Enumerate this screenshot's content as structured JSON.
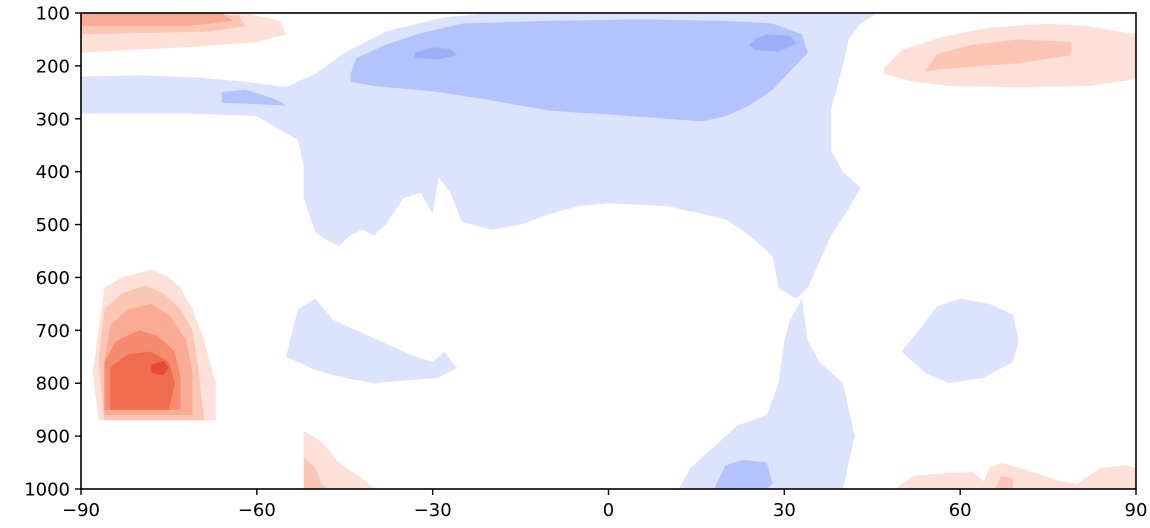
{
  "chart_data": {
    "type": "contour",
    "title": "",
    "xlabel": "",
    "ylabel": "",
    "x_range": [
      -90,
      90
    ],
    "y_range": [
      1000,
      100
    ],
    "y_inverted": true,
    "x_ticks": [
      -90,
      -60,
      -30,
      0,
      30,
      60,
      90
    ],
    "x_tick_labels": [
      "−90",
      "−60",
      "−30",
      "0",
      "30",
      "60",
      "90"
    ],
    "y_ticks": [
      100,
      200,
      300,
      400,
      500,
      600,
      700,
      800,
      900,
      1000
    ],
    "y_tick_labels": [
      "100",
      "200",
      "300",
      "400",
      "500",
      "600",
      "700",
      "800",
      "900",
      "1000"
    ],
    "grid": false,
    "colormap": "coolwarm",
    "level_colors": {
      "neg2": "#9aaff8",
      "neg1": "#b3c3fb",
      "neg0": "#dce3fc",
      "pos0": "#fde0d8",
      "pos1": "#fcc6b6",
      "pos2": "#f9ab95",
      "pos3": "#f58c70",
      "pos4": "#ef6c4e",
      "pos5": "#e6493a"
    },
    "regions": [
      {
        "name": "nh-polar-top-warm",
        "level": "pos0",
        "points": [
          [
            -90,
            100
          ],
          [
            -72,
            100
          ],
          [
            -62,
            100
          ],
          [
            -56,
            115
          ],
          [
            -55,
            140
          ],
          [
            -60,
            155
          ],
          [
            -72,
            165
          ],
          [
            -82,
            170
          ],
          [
            -90,
            175
          ]
        ]
      },
      {
        "name": "nh-polar-top-warm",
        "level": "pos1",
        "points": [
          [
            -90,
            100
          ],
          [
            -70,
            100
          ],
          [
            -63,
            105
          ],
          [
            -62,
            125
          ],
          [
            -68,
            135
          ],
          [
            -80,
            138
          ],
          [
            -90,
            140
          ]
        ]
      },
      {
        "name": "nh-polar-top-warm",
        "level": "pos2",
        "points": [
          [
            -90,
            100
          ],
          [
            -66,
            100
          ],
          [
            -64,
            115
          ],
          [
            -72,
            125
          ],
          [
            -90,
            125
          ]
        ]
      },
      {
        "name": "upper-cool-band",
        "level": "neg0",
        "points": [
          [
            -90,
            220
          ],
          [
            -80,
            218
          ],
          [
            -70,
            222
          ],
          [
            -62,
            230
          ],
          [
            -55,
            240
          ],
          [
            -50,
            215
          ],
          [
            -45,
            175
          ],
          [
            -38,
            135
          ],
          [
            -28,
            108
          ],
          [
            -20,
            100
          ],
          [
            46,
            100
          ],
          [
            43,
            120
          ],
          [
            41,
            150
          ],
          [
            40,
            200
          ],
          [
            38,
            280
          ],
          [
            38,
            360
          ],
          [
            40,
            400
          ],
          [
            43,
            430
          ],
          [
            41,
            470
          ],
          [
            38,
            520
          ],
          [
            36,
            570
          ],
          [
            34,
            620
          ],
          [
            32,
            640
          ],
          [
            29,
            620
          ],
          [
            28,
            560
          ],
          [
            24,
            520
          ],
          [
            20,
            490
          ],
          [
            10,
            465
          ],
          [
            0,
            460
          ],
          [
            -5,
            465
          ],
          [
            -10,
            480
          ],
          [
            -15,
            500
          ],
          [
            -20,
            510
          ],
          [
            -25,
            495
          ],
          [
            -27,
            440
          ],
          [
            -29,
            410
          ],
          [
            -30,
            480
          ],
          [
            -32,
            440
          ],
          [
            -35,
            450
          ],
          [
            -38,
            500
          ],
          [
            -40,
            520
          ],
          [
            -42,
            510
          ],
          [
            -44,
            520
          ],
          [
            -46,
            540
          ],
          [
            -48,
            530
          ],
          [
            -50,
            515
          ],
          [
            -52,
            450
          ],
          [
            -52,
            390
          ],
          [
            -53,
            340
          ],
          [
            -60,
            295
          ],
          [
            -72,
            290
          ],
          [
            -90,
            290
          ]
        ]
      },
      {
        "name": "upper-cool-core",
        "level": "neg1",
        "points": [
          [
            -44,
            215
          ],
          [
            -43,
            185
          ],
          [
            -38,
            160
          ],
          [
            -32,
            138
          ],
          [
            -25,
            120
          ],
          [
            -10,
            115
          ],
          [
            5,
            112
          ],
          [
            20,
            115
          ],
          [
            28,
            120
          ],
          [
            33,
            140
          ],
          [
            34,
            175
          ],
          [
            31,
            210
          ],
          [
            28,
            245
          ],
          [
            24,
            275
          ],
          [
            20,
            295
          ],
          [
            16,
            305
          ],
          [
            10,
            300
          ],
          [
            0,
            292
          ],
          [
            -10,
            285
          ],
          [
            -20,
            265
          ],
          [
            -30,
            248
          ],
          [
            -40,
            238
          ],
          [
            -44,
            230
          ]
        ]
      },
      {
        "name": "upper-cool-strong-1",
        "level": "neg2",
        "points": [
          [
            -33,
            175
          ],
          [
            -30,
            165
          ],
          [
            -27,
            168
          ],
          [
            -26,
            180
          ],
          [
            -29,
            188
          ],
          [
            -33,
            185
          ]
        ]
      },
      {
        "name": "upper-cool-strong-2",
        "level": "neg2",
        "points": [
          [
            25,
            150
          ],
          [
            27,
            140
          ],
          [
            31,
            143
          ],
          [
            32,
            158
          ],
          [
            29,
            173
          ],
          [
            25,
            170
          ],
          [
            24,
            160
          ]
        ]
      },
      {
        "name": "cool-tongue",
        "level": "neg1",
        "points": [
          [
            -66,
            250
          ],
          [
            -62,
            245
          ],
          [
            -57,
            262
          ],
          [
            -55,
            275
          ],
          [
            -60,
            272
          ],
          [
            -66,
            270
          ]
        ]
      },
      {
        "name": "mid-cool-lobe",
        "level": "neg0",
        "points": [
          [
            -55,
            750
          ],
          [
            -53,
            660
          ],
          [
            -50,
            640
          ],
          [
            -47,
            680
          ],
          [
            -42,
            705
          ],
          [
            -38,
            725
          ],
          [
            -34,
            745
          ],
          [
            -30,
            760
          ],
          [
            -28,
            740
          ],
          [
            -26,
            770
          ],
          [
            -25,
            765
          ],
          [
            -29,
            790
          ],
          [
            -35,
            795
          ],
          [
            -40,
            800
          ],
          [
            -45,
            790
          ],
          [
            -50,
            775
          ]
        ]
      },
      {
        "name": "tropical-lower-cool",
        "level": "neg0",
        "points": [
          [
            12,
            1000
          ],
          [
            14,
            960
          ],
          [
            18,
            920
          ],
          [
            22,
            880
          ],
          [
            27,
            860
          ],
          [
            29,
            800
          ],
          [
            30,
            720
          ],
          [
            31,
            680
          ],
          [
            33,
            640
          ],
          [
            34,
            720
          ],
          [
            36,
            760
          ],
          [
            38,
            780
          ],
          [
            40,
            800
          ],
          [
            41,
            850
          ],
          [
            42,
            900
          ],
          [
            41,
            950
          ],
          [
            40,
            1000
          ]
        ]
      },
      {
        "name": "tropical-lower-cool-core",
        "level": "neg1",
        "points": [
          [
            18,
            1000
          ],
          [
            20,
            955
          ],
          [
            23,
            945
          ],
          [
            27,
            950
          ],
          [
            28,
            990
          ],
          [
            27,
            1000
          ]
        ]
      },
      {
        "name": "mid-cool-lobe-2",
        "level": "neg0",
        "points": [
          [
            50,
            740
          ],
          [
            53,
            700
          ],
          [
            56,
            655
          ],
          [
            60,
            640
          ],
          [
            65,
            650
          ],
          [
            69,
            670
          ],
          [
            70,
            720
          ],
          [
            69,
            760
          ],
          [
            64,
            790
          ],
          [
            58,
            800
          ],
          [
            54,
            780
          ],
          [
            52,
            760
          ]
        ]
      },
      {
        "name": "sh-upper-warm",
        "level": "pos0",
        "points": [
          [
            47,
            205
          ],
          [
            50,
            170
          ],
          [
            57,
            145
          ],
          [
            65,
            128
          ],
          [
            75,
            120
          ],
          [
            82,
            125
          ],
          [
            90,
            140
          ],
          [
            90,
            225
          ],
          [
            82,
            238
          ],
          [
            70,
            240
          ],
          [
            58,
            238
          ],
          [
            52,
            230
          ],
          [
            47,
            215
          ]
        ]
      },
      {
        "name": "sh-upper-warm-core",
        "level": "pos1",
        "points": [
          [
            54,
            210
          ],
          [
            56,
            178
          ],
          [
            62,
            160
          ],
          [
            70,
            150
          ],
          [
            79,
            155
          ],
          [
            79,
            180
          ],
          [
            70,
            195
          ],
          [
            58,
            205
          ]
        ]
      },
      {
        "name": "nh-polar-low-warm",
        "level": "pos0",
        "points": [
          [
            -87,
            870
          ],
          [
            -88,
            780
          ],
          [
            -87,
            700
          ],
          [
            -86,
            620
          ],
          [
            -83,
            600
          ],
          [
            -78,
            585
          ],
          [
            -75,
            600
          ],
          [
            -73,
            620
          ],
          [
            -71,
            660
          ],
          [
            -69,
            720
          ],
          [
            -67,
            800
          ],
          [
            -67,
            870
          ]
        ]
      },
      {
        "name": "nh-polar-low-warm",
        "level": "pos1",
        "points": [
          [
            -86,
            870
          ],
          [
            -87,
            760
          ],
          [
            -86,
            660
          ],
          [
            -83,
            630
          ],
          [
            -79,
            615
          ],
          [
            -76,
            630
          ],
          [
            -73,
            660
          ],
          [
            -71,
            700
          ],
          [
            -70,
            770
          ],
          [
            -69,
            870
          ]
        ]
      },
      {
        "name": "nh-polar-low-warm",
        "level": "pos2",
        "points": [
          [
            -86,
            860
          ],
          [
            -86,
            760
          ],
          [
            -85,
            690
          ],
          [
            -82,
            660
          ],
          [
            -78,
            650
          ],
          [
            -75,
            670
          ],
          [
            -72,
            720
          ],
          [
            -71,
            780
          ],
          [
            -71,
            860
          ]
        ]
      },
      {
        "name": "nh-polar-low-warm",
        "level": "pos3",
        "points": [
          [
            -86,
            850
          ],
          [
            -86,
            760
          ],
          [
            -84,
            720
          ],
          [
            -80,
            700
          ],
          [
            -77,
            710
          ],
          [
            -74,
            740
          ],
          [
            -73,
            790
          ],
          [
            -73,
            850
          ]
        ]
      },
      {
        "name": "nh-polar-low-warm",
        "level": "pos4",
        "points": [
          [
            -85,
            850
          ],
          [
            -85,
            770
          ],
          [
            -82,
            745
          ],
          [
            -78,
            740
          ],
          [
            -75,
            760
          ],
          [
            -74,
            800
          ],
          [
            -75,
            850
          ]
        ]
      },
      {
        "name": "nh-polar-low-warm-peak",
        "level": "pos5",
        "points": [
          [
            -78,
            765
          ],
          [
            -76,
            758
          ],
          [
            -75,
            770
          ],
          [
            -76,
            785
          ],
          [
            -78,
            780
          ]
        ]
      },
      {
        "name": "nh-surface-warm",
        "level": "pos0",
        "points": [
          [
            -52,
            1000
          ],
          [
            -52,
            890
          ],
          [
            -49,
            910
          ],
          [
            -46,
            950
          ],
          [
            -42,
            980
          ],
          [
            -40,
            1000
          ]
        ]
      },
      {
        "name": "nh-surface-warm-core",
        "level": "pos1",
        "points": [
          [
            -52,
            1000
          ],
          [
            -52,
            940
          ],
          [
            -50,
            960
          ],
          [
            -49,
            990
          ],
          [
            -48,
            1000
          ]
        ]
      },
      {
        "name": "sh-surface-warm",
        "level": "pos0",
        "points": [
          [
            49,
            1000
          ],
          [
            52,
            975
          ],
          [
            58,
            970
          ],
          [
            62,
            968
          ],
          [
            64,
            985
          ],
          [
            65,
            960
          ],
          [
            67,
            950
          ],
          [
            70,
            960
          ],
          [
            73,
            970
          ],
          [
            77,
            985
          ],
          [
            80,
            990
          ],
          [
            84,
            960
          ],
          [
            88,
            955
          ],
          [
            90,
            960
          ],
          [
            90,
            1000
          ]
        ]
      },
      {
        "name": "sh-surface-warm-core",
        "level": "pos1",
        "points": [
          [
            66,
            1000
          ],
          [
            67,
            975
          ],
          [
            69,
            980
          ],
          [
            69,
            1000
          ]
        ]
      }
    ]
  }
}
